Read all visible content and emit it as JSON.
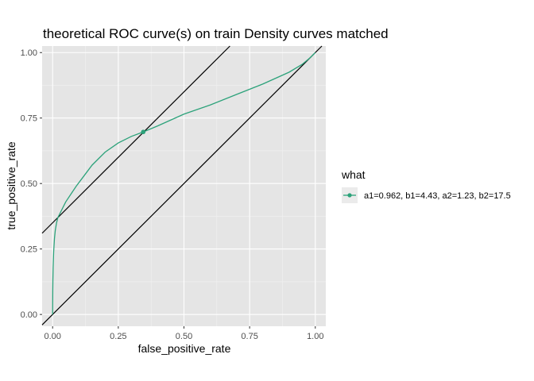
{
  "chart_data": {
    "type": "line",
    "title": "theoretical ROC curve(s) on train Density curves matched",
    "xlabel": "false_positive_rate",
    "ylabel": "true_positive_rate",
    "xlim": [
      -0.04,
      1.04
    ],
    "ylim": [
      -0.045,
      1.025
    ],
    "xticks": [
      0.0,
      0.25,
      0.5,
      0.75,
      1.0
    ],
    "xtick_labels": [
      "0.00",
      "0.25",
      "0.50",
      "0.75",
      "1.00"
    ],
    "yticks": [
      0.0,
      0.25,
      0.5,
      0.75,
      1.0
    ],
    "ytick_labels": [
      "0.00",
      "0.25",
      "0.50",
      "0.75",
      "1.00"
    ],
    "grid": true,
    "panel_background": "#e5e5e5",
    "legend": {
      "title": "what",
      "position": "right",
      "entries": [
        {
          "label": "a1=0.962, b1=4.43, a2=1.23, b2=17.5",
          "color": "#2ca27a"
        }
      ]
    },
    "series": [
      {
        "name": "a1=0.962, b1=4.43, a2=1.23, b2=17.5",
        "color": "#2ca27a",
        "x": [
          0.0,
          0.0005,
          0.001,
          0.002,
          0.004,
          0.007,
          0.01,
          0.015,
          0.02,
          0.03,
          0.04,
          0.05,
          0.07,
          0.09,
          0.12,
          0.15,
          0.2,
          0.25,
          0.3,
          0.345,
          0.4,
          0.5,
          0.6,
          0.7,
          0.8,
          0.9,
          0.95,
          0.98,
          1.0
        ],
        "y": [
          0.0,
          0.09,
          0.13,
          0.18,
          0.24,
          0.29,
          0.32,
          0.35,
          0.37,
          0.39,
          0.41,
          0.43,
          0.46,
          0.49,
          0.53,
          0.57,
          0.62,
          0.655,
          0.68,
          0.697,
          0.72,
          0.765,
          0.8,
          0.84,
          0.88,
          0.925,
          0.955,
          0.98,
          1.0
        ]
      }
    ],
    "points": [
      {
        "x": 0.345,
        "y": 0.697,
        "color": "#2ca27a"
      }
    ],
    "reference_lines": [
      {
        "intercept": 0.0,
        "slope": 1.0,
        "color": "#000000"
      },
      {
        "intercept": 0.35,
        "slope": 1.0,
        "color": "#000000"
      }
    ]
  }
}
